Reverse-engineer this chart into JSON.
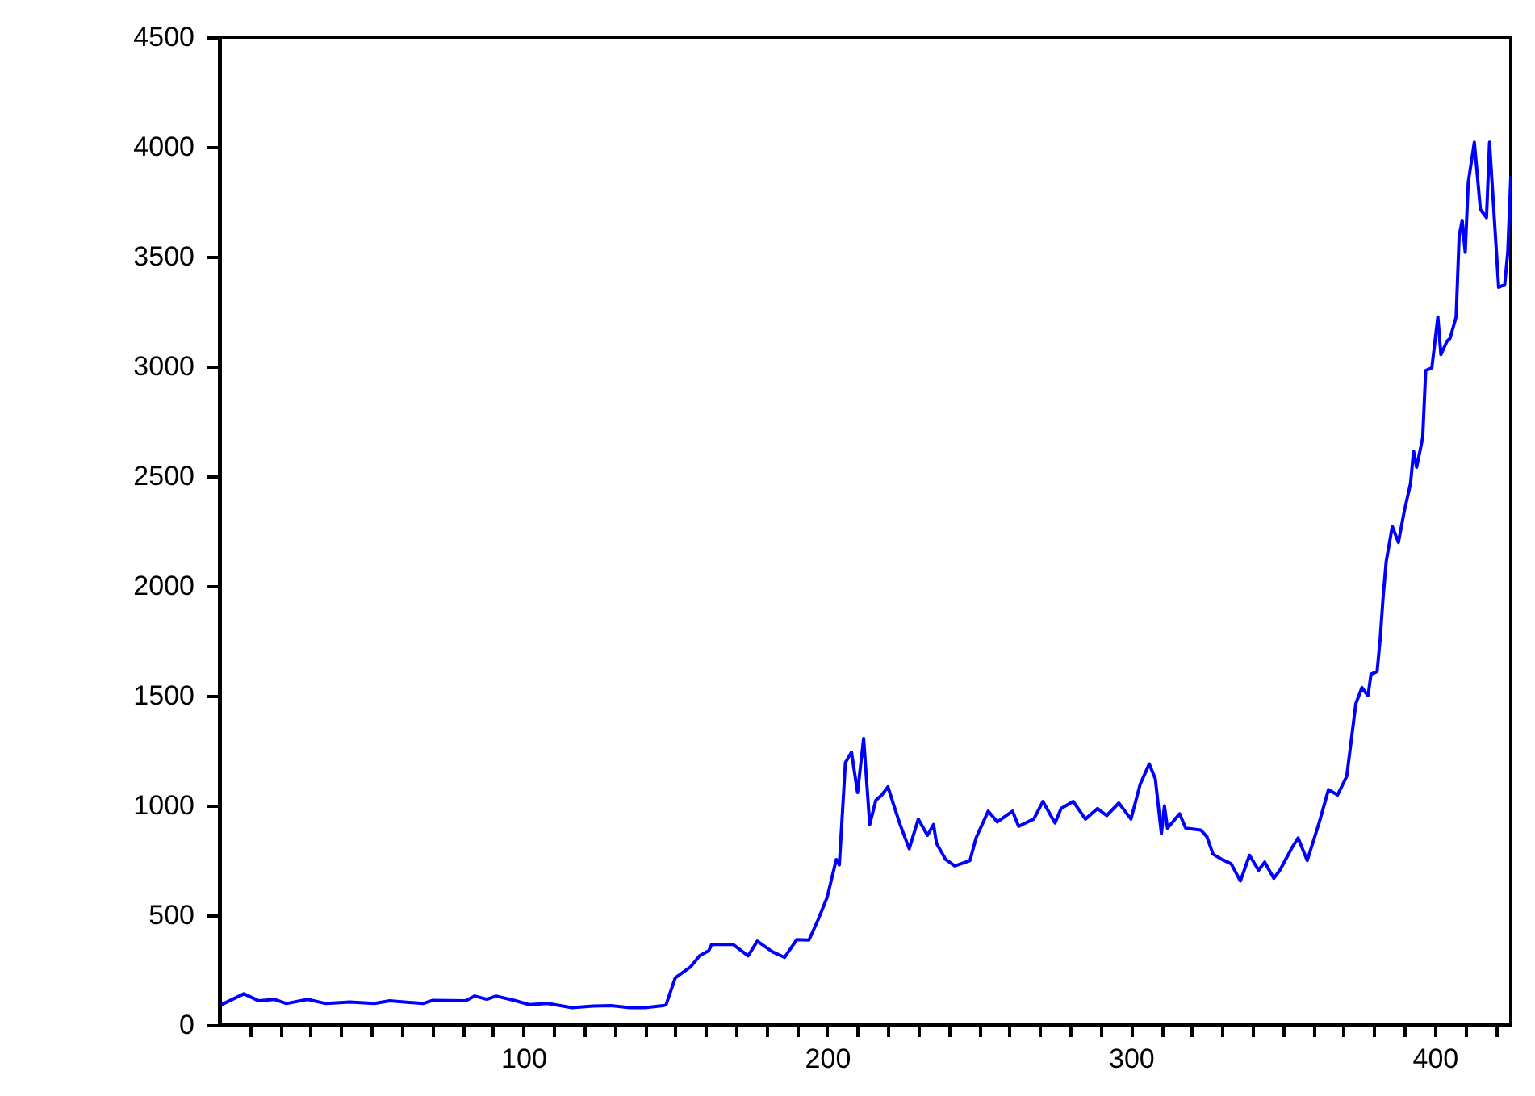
{
  "chart_data": {
    "type": "line",
    "x": [
      1,
      8,
      13,
      18,
      22,
      29,
      35,
      43,
      51,
      56,
      67,
      70,
      81,
      84,
      88,
      91,
      97,
      102,
      108,
      116,
      123,
      129,
      135,
      140,
      146,
      147,
      150,
      155,
      158,
      161,
      162,
      164,
      169,
      174,
      177,
      182,
      186,
      190,
      194,
      197,
      200,
      203,
      204,
      206,
      208,
      210,
      212,
      214,
      216,
      218,
      220,
      222,
      224,
      227,
      230,
      233,
      235,
      236,
      239,
      242,
      247,
      249,
      253,
      256,
      261,
      263,
      268,
      271,
      275,
      277,
      281,
      285,
      289,
      292,
      296,
      300,
      303,
      306,
      308,
      310,
      311,
      312,
      316,
      318,
      323,
      325,
      327,
      330,
      333,
      336,
      339,
      342,
      344,
      347,
      349,
      353,
      355,
      358,
      362,
      365,
      368,
      371,
      372,
      374,
      376,
      378,
      379,
      381,
      382,
      383,
      384,
      386,
      388,
      390,
      392,
      393,
      394,
      396,
      397,
      399,
      401,
      402,
      404,
      405,
      407,
      408,
      409,
      410,
      411,
      413,
      415,
      417,
      418,
      421,
      423,
      424,
      425
    ],
    "series": [
      {
        "color": "#0000ff",
        "values": [
          95,
          142,
          110,
          117,
          98,
          117,
          98,
          105,
          98,
          110,
          98,
          112,
          110,
          132,
          117,
          132,
          112,
          93,
          98,
          79,
          86,
          88,
          79,
          79,
          88,
          93,
          215,
          264,
          315,
          338,
          367,
          367,
          367,
          315,
          382,
          333,
          308,
          389,
          387,
          479,
          582,
          754,
          729,
          1195,
          1243,
          1059,
          1305,
          913,
          1023,
          1048,
          1085,
          998,
          913,
          803,
          938,
          864,
          913,
          827,
          754,
          725,
          749,
          852,
          974,
          925,
          974,
          905,
          938,
          1018,
          920,
          986,
          1018,
          938,
          986,
          954,
          1011,
          938,
          1096,
          1189,
          1121,
          872,
          998,
          896,
          962,
          896,
          888,
          857,
          778,
          754,
          734,
          656,
          773,
          705,
          742,
          668,
          705,
          808,
          852,
          749,
          925,
          1072,
          1048,
          1133,
          1243,
          1464,
          1537,
          1500,
          1598,
          1610,
          1757,
          1953,
          2112,
          2271,
          2198,
          2344,
          2467,
          2614,
          2540,
          2675,
          2981,
          2993,
          3225,
          3054,
          3115,
          3128,
          3225,
          3592,
          3666,
          3519,
          3838,
          4021,
          3715,
          3678,
          4021,
          3360,
          3373,
          3519,
          3862
        ]
      }
    ],
    "xlim": [
      0,
      425
    ],
    "xticks": [
      {
        "value": 10,
        "label": null
      },
      {
        "value": 20,
        "label": null
      },
      {
        "value": 30,
        "label": null
      },
      {
        "value": 40,
        "label": null
      },
      {
        "value": 50,
        "label": null
      },
      {
        "value": 60,
        "label": null
      },
      {
        "value": 70,
        "label": null
      },
      {
        "value": 80,
        "label": null
      },
      {
        "value": 90,
        "label": null
      },
      100,
      {
        "value": 110,
        "label": null
      },
      {
        "value": 120,
        "label": null
      },
      {
        "value": 130,
        "label": null
      },
      {
        "value": 140,
        "label": null
      },
      {
        "value": 150,
        "label": null
      },
      {
        "value": 160,
        "label": null
      },
      {
        "value": 170,
        "label": null
      },
      {
        "value": 180,
        "label": null
      },
      {
        "value": 190,
        "label": null
      },
      200,
      {
        "value": 210,
        "label": null
      },
      {
        "value": 220,
        "label": null
      },
      {
        "value": 230,
        "label": null
      },
      {
        "value": 240,
        "label": null
      },
      {
        "value": 250,
        "label": null
      },
      {
        "value": 260,
        "label": null
      },
      {
        "value": 270,
        "label": null
      },
      {
        "value": 280,
        "label": null
      },
      {
        "value": 290,
        "label": null
      },
      300,
      {
        "value": 310,
        "label": null
      },
      {
        "value": 320,
        "label": null
      },
      {
        "value": 330,
        "label": null
      },
      {
        "value": 340,
        "label": null
      },
      {
        "value": 350,
        "label": null
      },
      {
        "value": 360,
        "label": null
      },
      {
        "value": 370,
        "label": null
      },
      {
        "value": 380,
        "label": null
      },
      {
        "value": 390,
        "label": null
      },
      400,
      {
        "value": 410,
        "label": null
      },
      {
        "value": 420,
        "label": null
      }
    ],
    "ylim": [
      0,
      4500
    ],
    "yticks": [
      0,
      500,
      1000,
      1500,
      2000,
      2500,
      3000,
      3500,
      4000,
      4500
    ],
    "grid": false,
    "marker": "none",
    "line_style": "solid"
  }
}
